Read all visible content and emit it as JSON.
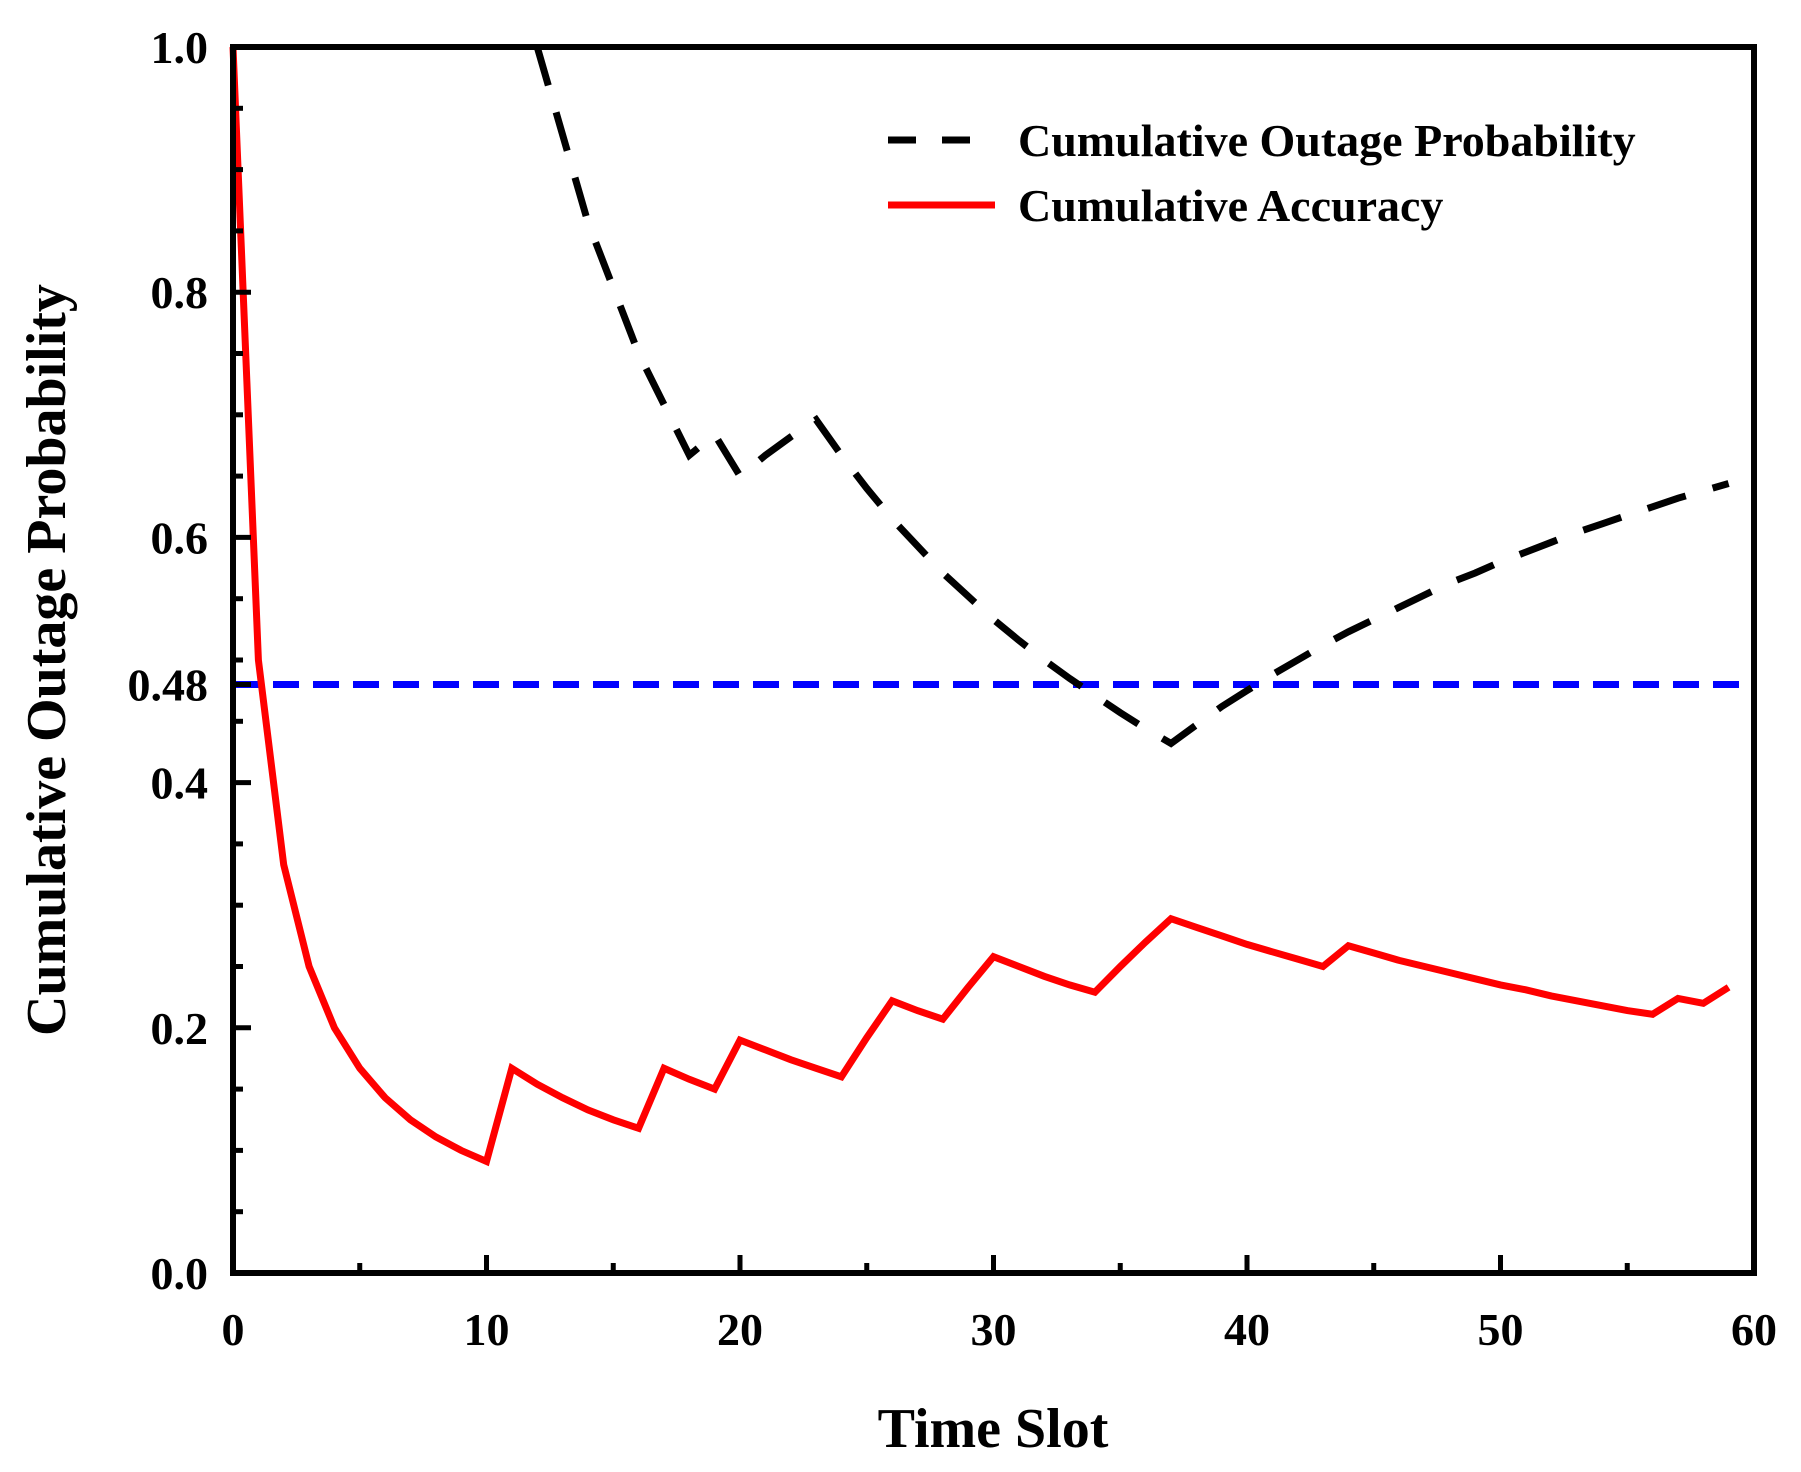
{
  "chart_data": {
    "type": "line",
    "title": "",
    "xlabel": "Time Slot",
    "ylabel": "Cumulative Outage Probability",
    "xlim": [
      0,
      60
    ],
    "ylim": [
      0,
      1.0
    ],
    "x_ticks": [
      0,
      10,
      20,
      30,
      40,
      50,
      60
    ],
    "x_tick_labels": [
      "0",
      "10",
      "20",
      "30",
      "40",
      "50",
      "60"
    ],
    "y_ticks": [
      0.0,
      0.2,
      0.4,
      0.48,
      0.6,
      0.8,
      1.0
    ],
    "y_tick_labels": [
      "0.0",
      "0.2",
      "0.4",
      "0.48",
      "0.6",
      "0.8",
      "1.0"
    ],
    "legend_position": "top-right",
    "grid": false,
    "threshold": {
      "value": 0.48,
      "color": "#0000ff",
      "style": "dashed"
    },
    "series": [
      {
        "name": "Cumulative Outage Probability",
        "color": "#000000",
        "style": "dashed",
        "x": [
          12,
          14,
          16,
          18,
          19,
          20,
          21,
          22,
          23,
          24,
          25,
          26,
          27,
          28,
          29,
          30,
          31,
          32,
          33,
          34,
          35,
          36,
          37,
          38,
          39,
          40,
          41,
          42,
          43,
          44,
          45,
          46,
          47,
          48,
          49,
          50,
          51,
          52,
          53,
          54,
          55,
          56,
          57,
          58,
          59
        ],
        "values": [
          1.0,
          0.857,
          0.75,
          0.667,
          0.684,
          0.65,
          0.667,
          0.682,
          0.696,
          0.667,
          0.64,
          0.615,
          0.593,
          0.571,
          0.552,
          0.533,
          0.516,
          0.5,
          0.485,
          0.471,
          0.457,
          0.444,
          0.432,
          0.447,
          0.462,
          0.475,
          0.488,
          0.5,
          0.512,
          0.523,
          0.533,
          0.543,
          0.553,
          0.563,
          0.571,
          0.58,
          0.588,
          0.596,
          0.604,
          0.611,
          0.618,
          0.625,
          0.632,
          0.638,
          0.644
        ]
      },
      {
        "name": "Cumulative Accuracy",
        "color": "#ff0000",
        "style": "solid",
        "x": [
          0,
          1,
          2,
          3,
          4,
          5,
          6,
          7,
          8,
          9,
          10,
          11,
          12,
          13,
          14,
          15,
          16,
          17,
          18,
          19,
          20,
          21,
          22,
          23,
          24,
          25,
          26,
          27,
          28,
          29,
          30,
          31,
          32,
          33,
          34,
          35,
          36,
          37,
          38,
          39,
          40,
          41,
          42,
          43,
          44,
          45,
          46,
          47,
          48,
          49,
          50,
          51,
          52,
          53,
          54,
          55,
          56,
          57,
          58,
          59
        ],
        "values": [
          1.0,
          0.5,
          0.333,
          0.25,
          0.2,
          0.167,
          0.143,
          0.125,
          0.111,
          0.1,
          0.091,
          0.167,
          0.154,
          0.143,
          0.133,
          0.125,
          0.118,
          0.167,
          0.158,
          0.15,
          0.19,
          0.182,
          0.174,
          0.167,
          0.16,
          0.192,
          0.222,
          0.214,
          0.207,
          0.233,
          0.258,
          0.25,
          0.242,
          0.235,
          0.229,
          0.25,
          0.27,
          0.289,
          0.282,
          0.275,
          0.268,
          0.262,
          0.256,
          0.25,
          0.267,
          0.261,
          0.255,
          0.25,
          0.245,
          0.24,
          0.235,
          0.231,
          0.226,
          0.222,
          0.218,
          0.214,
          0.211,
          0.224,
          0.22,
          0.233
        ]
      }
    ]
  }
}
